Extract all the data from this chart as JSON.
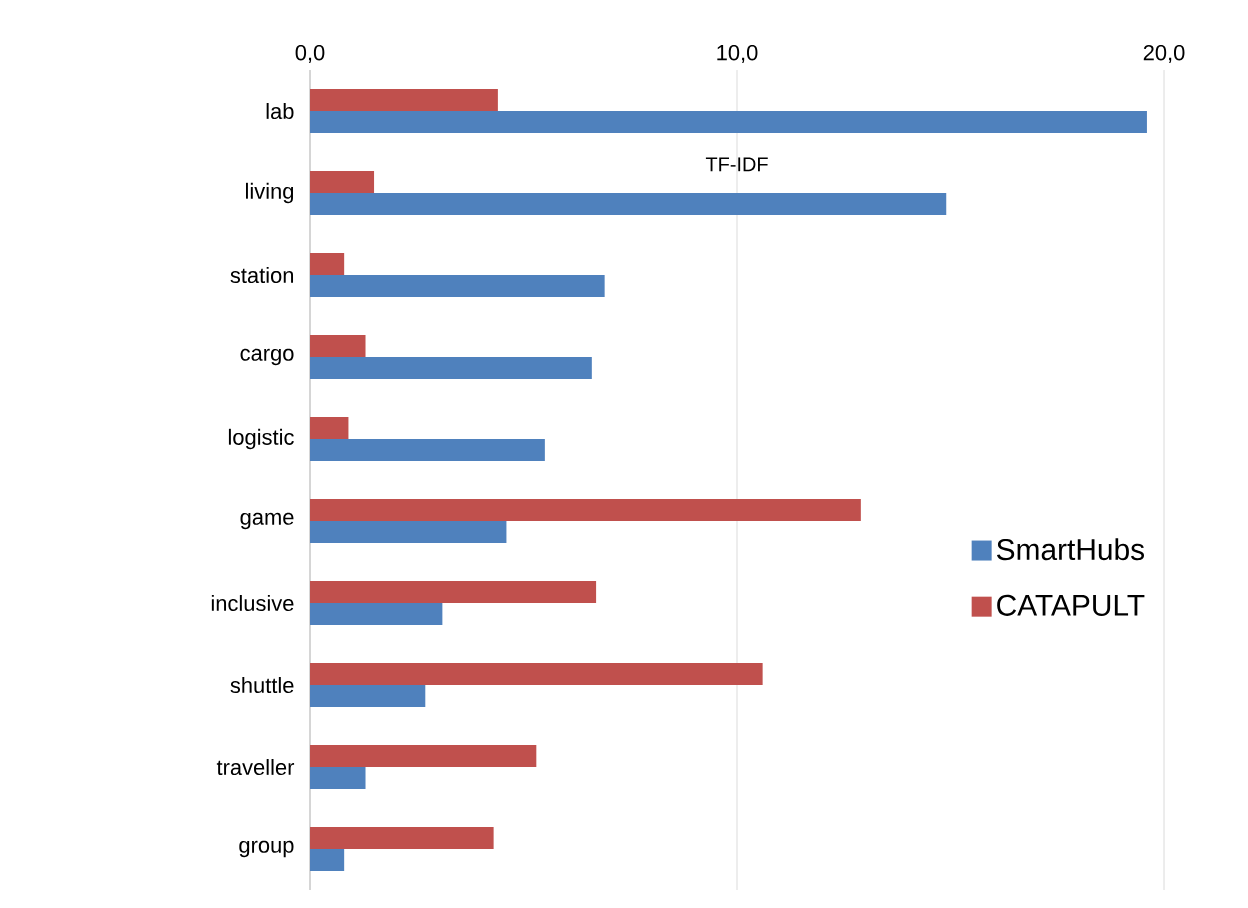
{
  "chart_data": {
    "type": "bar",
    "orientation": "horizontal",
    "xlabel": "TF-IDF",
    "categories": [
      "lab",
      "living",
      "station",
      "cargo",
      "logistic",
      "game",
      "inclusive",
      "shuttle",
      "traveller",
      "group"
    ],
    "series": [
      {
        "name": "SmartHubs",
        "color": "#4f81bd",
        "values": [
          19.6,
          14.9,
          6.9,
          6.6,
          5.5,
          4.6,
          3.1,
          2.7,
          1.3,
          0.8
        ]
      },
      {
        "name": "CATAPULT",
        "color": "#c0504d",
        "values": [
          4.4,
          1.5,
          0.8,
          1.3,
          0.9,
          12.9,
          6.7,
          10.6,
          5.3,
          4.3
        ]
      }
    ],
    "xlim": [
      0,
      20
    ],
    "xticks": [
      {
        "value": 0,
        "label": "0,0"
      },
      {
        "value": 10,
        "label": "10,0"
      },
      {
        "value": 20,
        "label": "20,0"
      }
    ],
    "grid": "x",
    "legend": "right"
  }
}
